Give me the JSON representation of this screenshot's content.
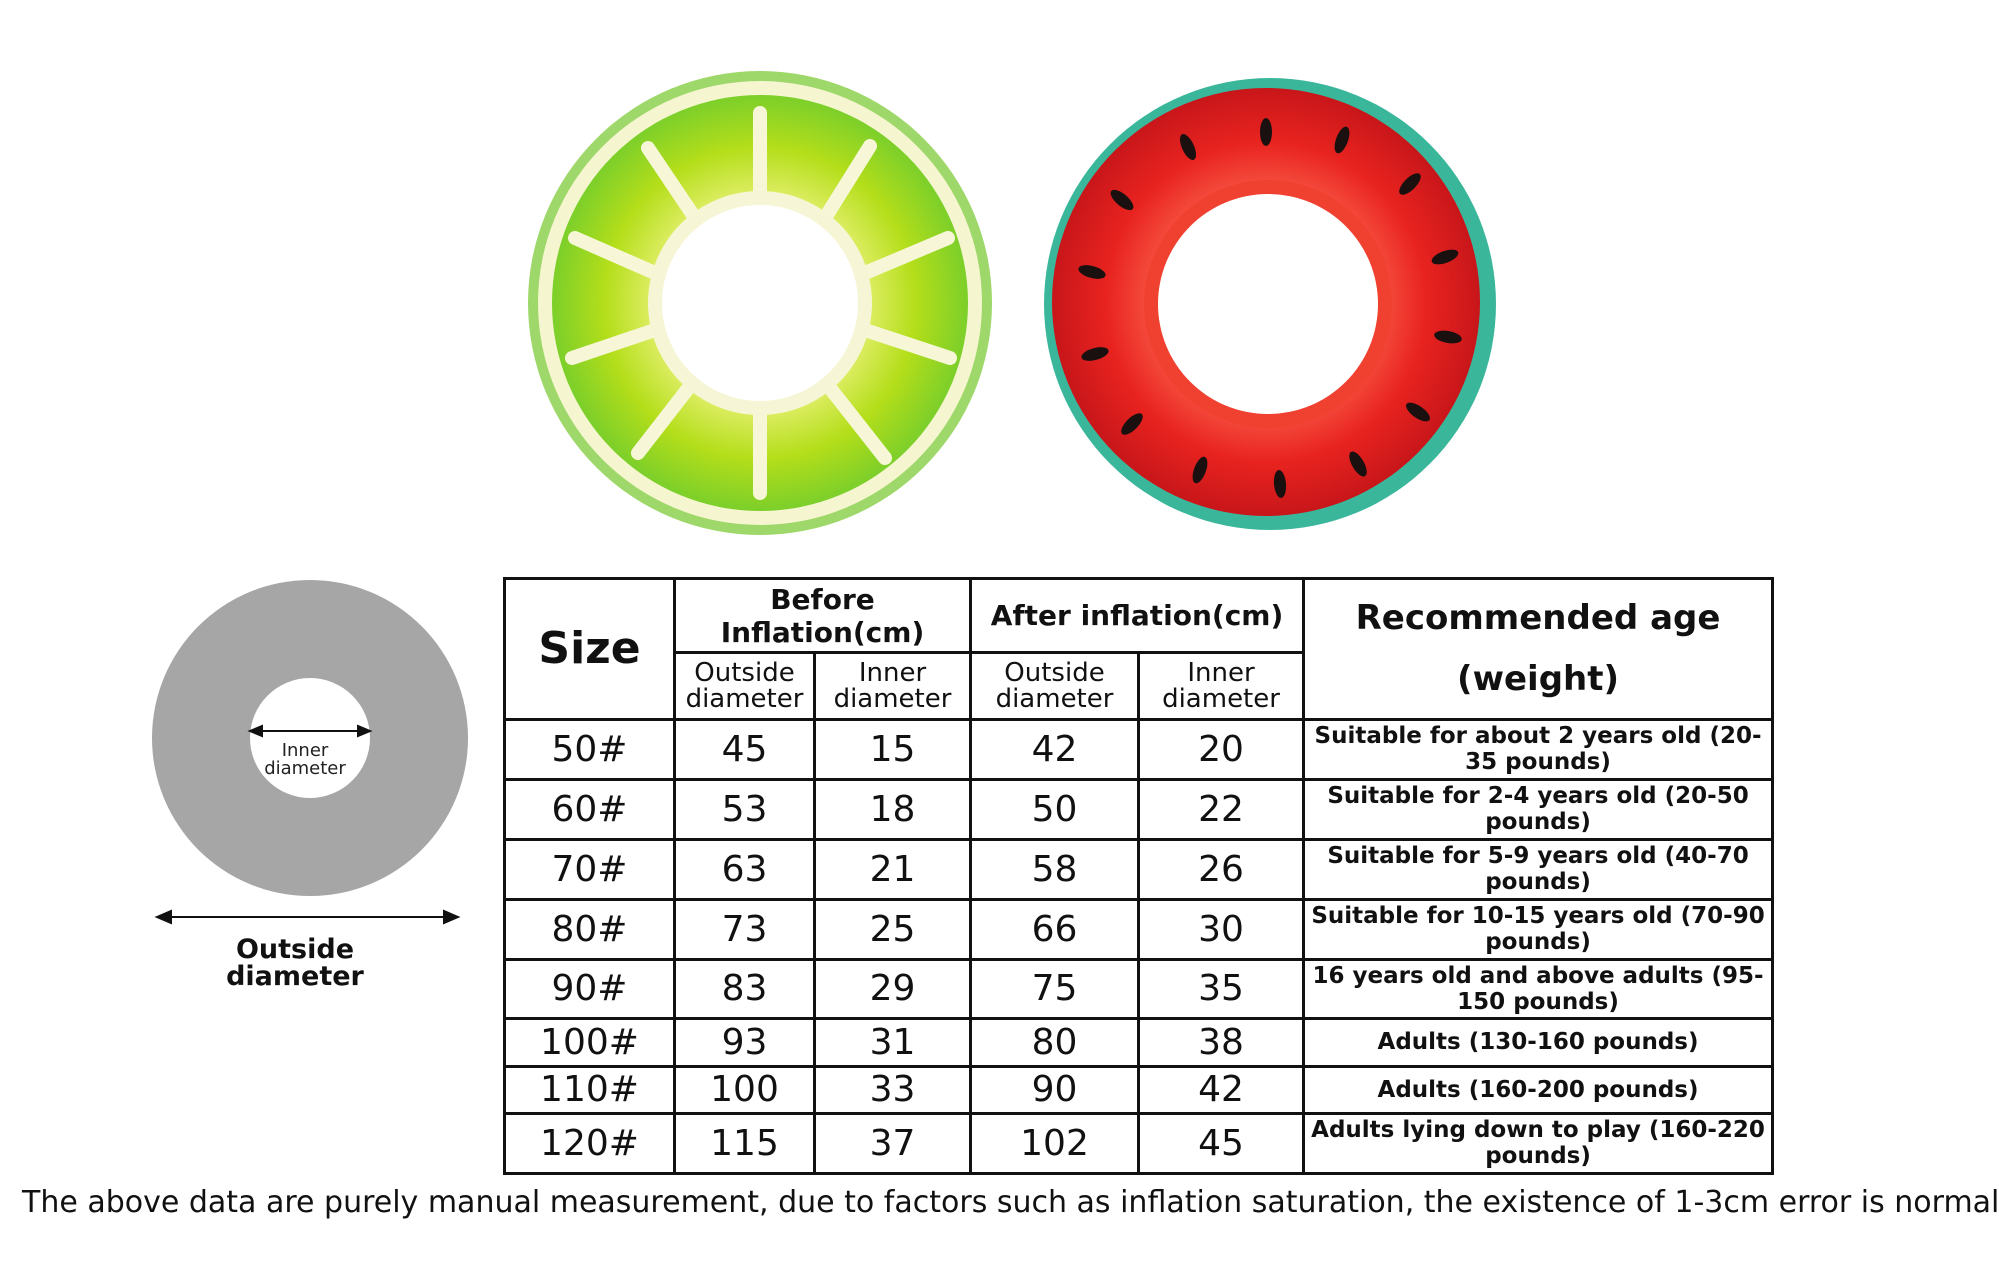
{
  "products": [
    {
      "name_icon": "lemon-slice-swim-ring-icon",
      "colors": {
        "fruit": "#b9e01c",
        "rind": "#f3f3c8",
        "edge": "#6fcf3a"
      }
    },
    {
      "name_icon": "watermelon-swim-ring-icon",
      "colors": {
        "fruit": "#e8231f",
        "seed": "#1a1010",
        "rind": "#2fb08a"
      }
    }
  ],
  "diagram": {
    "inner_label": "Inner diameter",
    "outer_label": "Outside diameter",
    "ring_color": "#a6a6a6"
  },
  "table": {
    "size_header": "Size",
    "before_header": "Before Inflation(cm)",
    "after_header": "After inflation(cm)",
    "outside_header": "Outside diameter",
    "inner_header": "Inner diameter",
    "age_header": "Recommended age (weight)",
    "rows": [
      {
        "size": "50#",
        "before_outside": "45",
        "before_inner": "15",
        "after_outside": "42",
        "after_inner": "20",
        "age": "Suitable for about 2 years old (20-35 pounds)"
      },
      {
        "size": "60#",
        "before_outside": "53",
        "before_inner": "18",
        "after_outside": "50",
        "after_inner": "22",
        "age": "Suitable for 2-4 years old (20-50 pounds)"
      },
      {
        "size": "70#",
        "before_outside": "63",
        "before_inner": "21",
        "after_outside": "58",
        "after_inner": "26",
        "age": "Suitable for 5-9 years old (40-70 pounds)"
      },
      {
        "size": "80#",
        "before_outside": "73",
        "before_inner": "25",
        "after_outside": "66",
        "after_inner": "30",
        "age": "Suitable for 10-15 years old (70-90 pounds)"
      },
      {
        "size": "90#",
        "before_outside": "83",
        "before_inner": "29",
        "after_outside": "75",
        "after_inner": "35",
        "age": "16 years old and above adults (95-150 pounds)"
      },
      {
        "size": "100#",
        "before_outside": "93",
        "before_inner": "31",
        "after_outside": "80",
        "after_inner": "38",
        "age": "Adults (130-160 pounds)"
      },
      {
        "size": "110#",
        "before_outside": "100",
        "before_inner": "33",
        "after_outside": "90",
        "after_inner": "42",
        "age": "Adults (160-200 pounds)"
      },
      {
        "size": "120#",
        "before_outside": "115",
        "before_inner": "37",
        "after_outside": "102",
        "after_inner": "45",
        "age": "Adults lying down to play (160-220 pounds)"
      }
    ]
  },
  "footnote": "The above data are purely manual measurement, due to factors such as inflation saturation, the existence of 1-3cm error is normal"
}
